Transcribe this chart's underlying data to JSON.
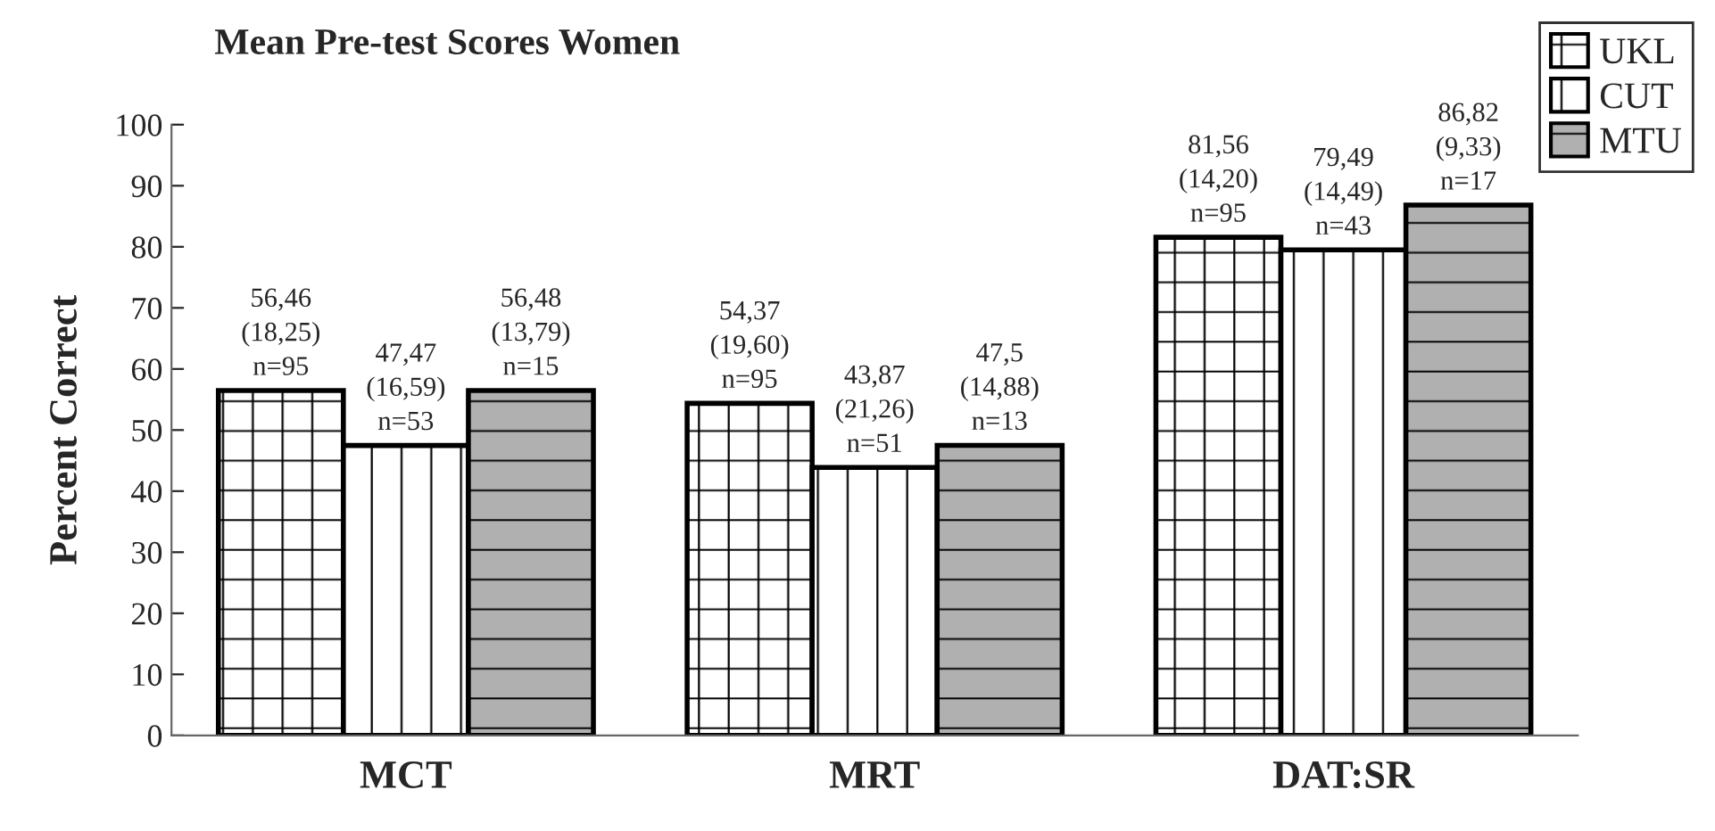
{
  "chart_data": {
    "type": "bar",
    "title": "Mean Pre-test Scores Women",
    "ylabel": "Percent Correct",
    "categories": [
      "MCT",
      "MRT",
      "DAT:SR"
    ],
    "series": [
      {
        "name": "UKL",
        "color": "#ffffff",
        "values": [
          56.46,
          54.37,
          81.56
        ],
        "value_labels": [
          "56,46\n(18,25)\nn=95",
          "54,37\n(19,60)\nn=95",
          "81,56\n(14,20)\nn=95"
        ]
      },
      {
        "name": "CUT",
        "color": "#ffffff",
        "values": [
          47.47,
          43.87,
          79.49
        ],
        "value_labels": [
          "47,47\n(16,59)\nn=53",
          "43,87\n(21,26)\nn=51",
          "79,49\n(14,49)\nn=43"
        ]
      },
      {
        "name": "MTU",
        "color": "#b0b0b0",
        "values": [
          56.48,
          47.5,
          86.82
        ],
        "value_labels": [
          "56,48\n(13,79)\nn=15",
          "47,5\n(14,88)\nn=13",
          "86,82\n(9,33)\nn=17"
        ]
      }
    ],
    "ylim": [
      0,
      100
    ],
    "yticks": [
      0,
      10,
      20,
      30,
      40,
      50,
      60,
      70,
      80,
      90,
      100
    ],
    "grid": false,
    "legend": "top right"
  }
}
